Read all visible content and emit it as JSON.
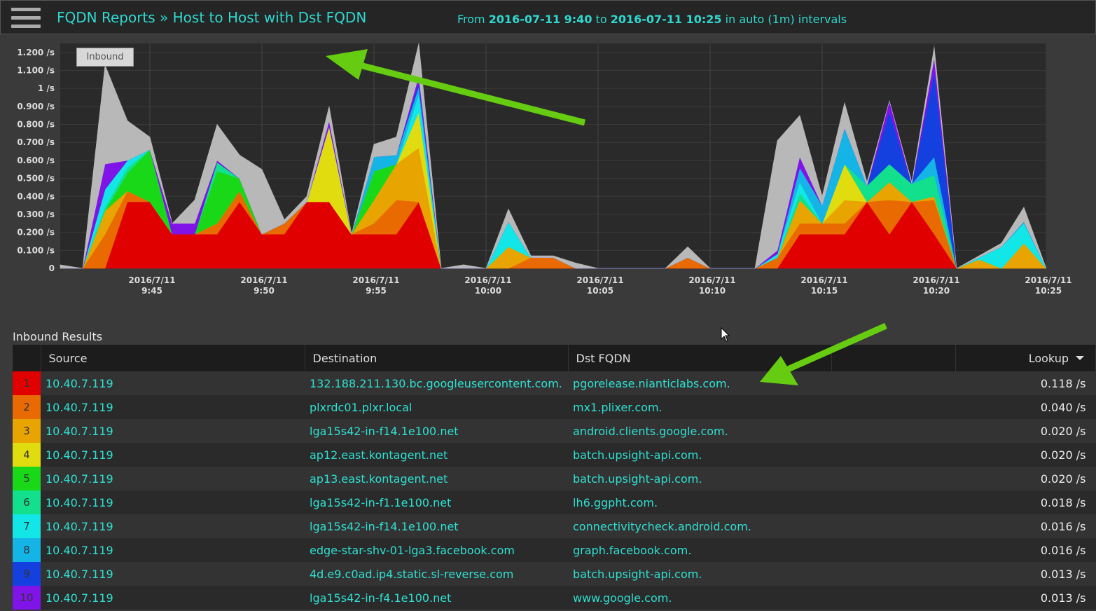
{
  "header": {
    "title": "FQDN Reports » Host to Host with Dst FQDN",
    "from": "From",
    "start": "2016-07-11 9:40",
    "to": "to",
    "end": "2016-07-11 10:25",
    "interval": "in auto (1m) intervals"
  },
  "chart_data": {
    "type": "stacked_area",
    "badge": "Inbound",
    "x": [
      "2016/7/11 9:41",
      "2016/7/11 9:42",
      "2016/7/11 9:43",
      "2016/7/11 9:44",
      "2016/7/11 9:45",
      "2016/7/11 9:46",
      "2016/7/11 9:47",
      "2016/7/11 9:48",
      "2016/7/11 9:49",
      "2016/7/11 9:50",
      "2016/7/11 9:51",
      "2016/7/11 9:52",
      "2016/7/11 9:53",
      "2016/7/11 9:54",
      "2016/7/11 9:55",
      "2016/7/11 9:56",
      "2016/7/11 9:57",
      "2016/7/11 9:58",
      "2016/7/11 9:59",
      "2016/7/11 10:00",
      "2016/7/11 10:01",
      "2016/7/11 10:02",
      "2016/7/11 10:03",
      "2016/7/11 10:04",
      "2016/7/11 10:05",
      "2016/7/11 10:06",
      "2016/7/11 10:07",
      "2016/7/11 10:08",
      "2016/7/11 10:09",
      "2016/7/11 10:10",
      "2016/7/11 10:11",
      "2016/7/11 10:12",
      "2016/7/11 10:13",
      "2016/7/11 10:14",
      "2016/7/11 10:15",
      "2016/7/11 10:16",
      "2016/7/11 10:17",
      "2016/7/11 10:18",
      "2016/7/11 10:19",
      "2016/7/11 10:20",
      "2016/7/11 10:21",
      "2016/7/11 10:22",
      "2016/7/11 10:23",
      "2016/7/11 10:24",
      "2016/7/11 10:25"
    ],
    "xticks": [
      "2016/7/11 9:45",
      "2016/7/11 9:50",
      "2016/7/11 9:55",
      "2016/7/11 10:00",
      "2016/7/11 10:05",
      "2016/7/11 10:10",
      "2016/7/11 10:15",
      "2016/7/11 10:20",
      "2016/7/11 10:25"
    ],
    "ylim": [
      0,
      1.25
    ],
    "yticks": [
      0,
      {
        "value": 0.1,
        "label": "0.100 /s"
      },
      {
        "value": 0.2,
        "label": "0.200 /s"
      },
      {
        "value": 0.3,
        "label": "0.300 /s"
      },
      {
        "value": 0.4,
        "label": "0.400 /s"
      },
      {
        "value": 0.5,
        "label": "0.500 /s"
      },
      {
        "value": 0.6,
        "label": "0.600 /s"
      },
      {
        "value": 0.7,
        "label": "0.700 /s"
      },
      {
        "value": 0.8,
        "label": "0.800 /s"
      },
      {
        "value": 0.9,
        "label": "0.900 /s"
      },
      {
        "value": 1,
        "label": "1 /s"
      },
      {
        "value": 1.1,
        "label": "1.100 /s"
      },
      {
        "value": 1.2,
        "label": "1.200 /s"
      }
    ],
    "grid": true,
    "series": [
      {
        "color": "#e00000",
        "values": [
          0,
          0,
          0,
          0.37,
          0.37,
          0.19,
          0.19,
          0.19,
          0.37,
          0.19,
          0.19,
          0.37,
          0.37,
          0.19,
          0.19,
          0.19,
          0.37,
          0,
          0,
          0,
          0,
          0,
          0,
          0,
          0,
          0,
          0,
          0,
          0,
          0,
          0,
          0,
          0,
          0.19,
          0.19,
          0.19,
          0.37,
          0.19,
          0.37,
          0.19,
          0,
          0,
          0,
          0,
          0
        ]
      },
      {
        "color": "#e86a00",
        "values": [
          0,
          0,
          0.19,
          0.06,
          0,
          0,
          0,
          0.06,
          0.06,
          0,
          0.06,
          0,
          0,
          0,
          0.06,
          0.19,
          0,
          0,
          0,
          0,
          0,
          0.06,
          0.06,
          0,
          0,
          0,
          0,
          0,
          0.06,
          0,
          0,
          0,
          0.06,
          0.06,
          0.06,
          0.06,
          0,
          0.19,
          0,
          0.19,
          0,
          0,
          0,
          0,
          0
        ]
      },
      {
        "color": "#e8a400",
        "values": [
          0,
          0,
          0.13,
          0,
          0,
          0,
          0,
          0,
          0,
          0,
          0,
          0,
          0,
          0,
          0.13,
          0.2,
          0.3,
          0,
          0,
          0,
          0.12,
          0,
          0,
          0,
          0,
          0,
          0,
          0,
          0,
          0,
          0,
          0,
          0,
          0.13,
          0,
          0.13,
          0,
          0.1,
          0,
          0.02,
          0,
          0.05,
          0,
          0.14,
          0
        ]
      },
      {
        "color": "#e0dc10",
        "values": [
          0,
          0,
          0,
          0,
          0,
          0,
          0,
          0,
          0,
          0,
          0,
          0,
          0.42,
          0,
          0,
          0,
          0.2,
          0,
          0,
          0,
          0,
          0,
          0,
          0,
          0,
          0,
          0,
          0,
          0,
          0,
          0,
          0,
          0,
          0,
          0,
          0.2,
          0,
          0,
          0,
          0,
          0,
          0,
          0,
          0,
          0
        ]
      },
      {
        "color": "#18d818",
        "values": [
          0,
          0,
          0,
          0.1,
          0.29,
          0,
          0,
          0.29,
          0.07,
          0,
          0,
          0,
          0,
          0,
          0.16,
          0,
          0,
          0,
          0,
          0,
          0,
          0,
          0,
          0,
          0,
          0,
          0,
          0,
          0,
          0,
          0,
          0,
          0,
          0,
          0,
          0,
          0,
          0,
          0,
          0,
          0,
          0,
          0,
          0,
          0
        ]
      },
      {
        "color": "#12e08c",
        "values": [
          0,
          0,
          0.02,
          0.03,
          0,
          0,
          0,
          0.05,
          0,
          0,
          0,
          0,
          0,
          0,
          0,
          0,
          0,
          0,
          0,
          0,
          0,
          0,
          0,
          0,
          0,
          0,
          0,
          0,
          0,
          0,
          0,
          0,
          0,
          0.04,
          0,
          0,
          0.09,
          0.1,
          0.1,
          0.12,
          0,
          0,
          0,
          0,
          0
        ]
      },
      {
        "color": "#12e6e6",
        "values": [
          0,
          0,
          0.1,
          0.04,
          0,
          0,
          0,
          0,
          0,
          0,
          0,
          0,
          0,
          0,
          0,
          0,
          0.1,
          0,
          0,
          0,
          0.14,
          0,
          0,
          0,
          0,
          0,
          0,
          0,
          0,
          0,
          0,
          0,
          0.02,
          0.06,
          0,
          0,
          0,
          0,
          0,
          0,
          0,
          0.01,
          0.12,
          0.11,
          0
        ]
      },
      {
        "color": "#14b4e6",
        "values": [
          0,
          0,
          0,
          0,
          0,
          0,
          0,
          0,
          0,
          0,
          0,
          0,
          0,
          0,
          0.08,
          0.05,
          0.04,
          0,
          0,
          0,
          0,
          0,
          0,
          0,
          0,
          0,
          0,
          0,
          0,
          0,
          0,
          0,
          0,
          0.08,
          0.1,
          0.2,
          0,
          0,
          0,
          0.1,
          0,
          0,
          0,
          0.01,
          0
        ]
      },
      {
        "color": "#1440e0",
        "values": [
          0,
          0,
          0,
          0,
          0,
          0,
          0,
          0,
          0,
          0,
          0,
          0,
          0,
          0,
          0,
          0,
          0.02,
          0,
          0,
          0,
          0,
          0,
          0,
          0,
          0,
          0,
          0,
          0,
          0,
          0,
          0,
          0,
          0,
          0,
          0,
          0,
          0,
          0.29,
          0,
          0.47,
          0,
          0,
          0,
          0,
          0
        ]
      },
      {
        "color": "#8014e8",
        "values": [
          0,
          0,
          0.14,
          0,
          0,
          0.06,
          0.06,
          0.01,
          0,
          0,
          0,
          0,
          0.03,
          0,
          0,
          0,
          0.04,
          0,
          0,
          0,
          0,
          0,
          0,
          0,
          0,
          0,
          0,
          0,
          0,
          0,
          0,
          0,
          0.02,
          0.06,
          0,
          0,
          0,
          0.06,
          0,
          0.08,
          0,
          0,
          0,
          0,
          0
        ]
      },
      {
        "color": "#b8b8b8",
        "values": [
          0.02,
          0,
          0.55,
          0.22,
          0.07,
          0,
          0.13,
          0.2,
          0.13,
          0.36,
          0.02,
          0.03,
          0.08,
          0,
          0.07,
          0.1,
          0.18,
          0,
          0.02,
          0,
          0.07,
          0.01,
          0.01,
          0.03,
          0,
          0,
          0,
          0,
          0.06,
          0,
          0,
          0,
          0.61,
          0.23,
          0.05,
          0.14,
          0.02,
          0,
          0.01,
          0.06,
          0,
          0.01,
          0.02,
          0.08,
          0
        ]
      }
    ]
  },
  "table": {
    "title": "Inbound Results",
    "columns": [
      "Source",
      "Destination",
      "Dst FQDN",
      "Lookup"
    ],
    "rows": [
      {
        "rank": "1",
        "source": "10.40.7.119",
        "destination": "132.188.211.130.bc.googleusercontent.com.",
        "fqdn": "pgorelease.nianticlabs.com.",
        "lookup": "0.118 /s"
      },
      {
        "rank": "2",
        "source": "10.40.7.119",
        "destination": "plxrdc01.plxr.local",
        "fqdn": "mx1.plixer.com.",
        "lookup": "0.040 /s"
      },
      {
        "rank": "3",
        "source": "10.40.7.119",
        "destination": "lga15s42-in-f14.1e100.net",
        "fqdn": "android.clients.google.com.",
        "lookup": "0.020 /s"
      },
      {
        "rank": "4",
        "source": "10.40.7.119",
        "destination": "ap12.east.kontagent.net",
        "fqdn": "batch.upsight-api.com.",
        "lookup": "0.020 /s"
      },
      {
        "rank": "5",
        "source": "10.40.7.119",
        "destination": "ap13.east.kontagent.net",
        "fqdn": "batch.upsight-api.com.",
        "lookup": "0.020 /s"
      },
      {
        "rank": "6",
        "source": "10.40.7.119",
        "destination": "lga15s42-in-f1.1e100.net",
        "fqdn": "lh6.ggpht.com.",
        "lookup": "0.018 /s"
      },
      {
        "rank": "7",
        "source": "10.40.7.119",
        "destination": "lga15s42-in-f14.1e100.net",
        "fqdn": "connectivitycheck.android.com.",
        "lookup": "0.016 /s"
      },
      {
        "rank": "8",
        "source": "10.40.7.119",
        "destination": "edge-star-shv-01-lga3.facebook.com",
        "fqdn": "graph.facebook.com.",
        "lookup": "0.016 /s"
      },
      {
        "rank": "9",
        "source": "10.40.7.119",
        "destination": "4d.e9.c0ad.ip4.static.sl-reverse.com",
        "fqdn": "batch.upsight-api.com.",
        "lookup": "0.013 /s"
      },
      {
        "rank": "10",
        "source": "10.40.7.119",
        "destination": "lga15s42-in-f4.1e100.net",
        "fqdn": "www.google.com.",
        "lookup": "0.013 /s"
      }
    ]
  }
}
